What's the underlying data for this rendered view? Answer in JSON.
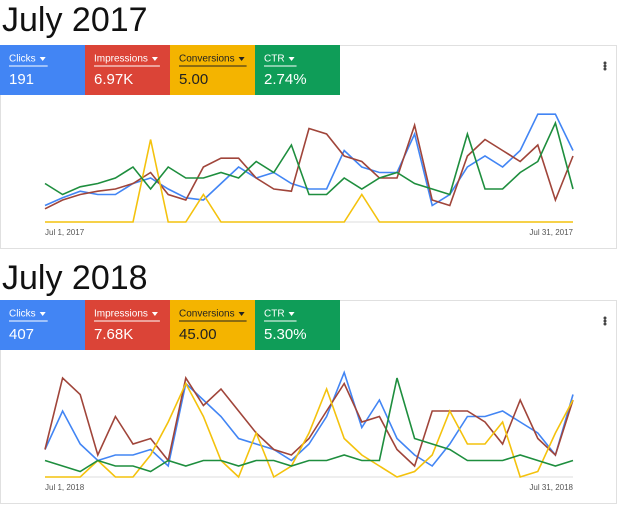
{
  "panels": [
    {
      "title": "July 2017",
      "tiles": [
        {
          "label": "Clicks",
          "value": "191"
        },
        {
          "label": "Impressions",
          "value": "6.97K"
        },
        {
          "label": "Conversions",
          "value": "5.00"
        },
        {
          "label": "CTR",
          "value": "2.74%"
        }
      ],
      "chart_data": {
        "type": "line",
        "ylim": [
          0,
          100
        ],
        "categories": [
          "Jul 1, 2017",
          null,
          null,
          null,
          null,
          null,
          null,
          null,
          null,
          null,
          null,
          null,
          null,
          null,
          null,
          null,
          null,
          null,
          null,
          null,
          null,
          null,
          null,
          null,
          null,
          null,
          null,
          null,
          null,
          null,
          "Jul 31, 2017"
        ],
        "series": [
          {
            "name": "Clicks",
            "color": "#4285f4",
            "values": [
              15,
              22,
              28,
              25,
              25,
              35,
              40,
              30,
              22,
              20,
              35,
              50,
              40,
              45,
              35,
              30,
              30,
              65,
              50,
              45,
              45,
              80,
              15,
              25,
              50,
              60,
              50,
              65,
              98,
              98,
              65
            ]
          },
          {
            "name": "Impressions",
            "color": "#a0453a",
            "values": [
              12,
              20,
              25,
              28,
              30,
              35,
              45,
              25,
              20,
              50,
              58,
              58,
              40,
              30,
              28,
              85,
              80,
              60,
              55,
              40,
              40,
              88,
              20,
              15,
              60,
              75,
              65,
              55,
              70,
              20,
              60
            ]
          },
          {
            "name": "Conversions",
            "color": "#f4c20d",
            "values": [
              0,
              0,
              0,
              0,
              0,
              0,
              75,
              0,
              0,
              25,
              0,
              0,
              0,
              0,
              0,
              0,
              0,
              0,
              25,
              0,
              0,
              0,
              0,
              0,
              0,
              0,
              0,
              0,
              0,
              0,
              0
            ]
          },
          {
            "name": "CTR",
            "color": "#1e8e3e",
            "values": [
              35,
              25,
              32,
              35,
              40,
              50,
              30,
              50,
              40,
              40,
              45,
              40,
              55,
              45,
              70,
              25,
              25,
              40,
              30,
              40,
              45,
              35,
              30,
              25,
              80,
              30,
              30,
              45,
              55,
              90,
              30
            ]
          }
        ]
      }
    },
    {
      "title": "July 2018",
      "tiles": [
        {
          "label": "Clicks",
          "value": "407"
        },
        {
          "label": "Impressions",
          "value": "7.68K"
        },
        {
          "label": "Conversions",
          "value": "45.00"
        },
        {
          "label": "CTR",
          "value": "5.30%"
        }
      ],
      "chart_data": {
        "type": "line",
        "ylim": [
          0,
          100
        ],
        "categories": [
          "Jul 1, 2018",
          null,
          null,
          null,
          null,
          null,
          null,
          null,
          null,
          null,
          null,
          null,
          null,
          null,
          null,
          null,
          null,
          null,
          null,
          null,
          null,
          null,
          null,
          null,
          null,
          null,
          null,
          null,
          null,
          null,
          "Jul 31, 2018"
        ],
        "series": [
          {
            "name": "Clicks",
            "color": "#4285f4",
            "values": [
              25,
              60,
              30,
              15,
              20,
              20,
              25,
              10,
              85,
              70,
              55,
              35,
              30,
              25,
              15,
              30,
              55,
              95,
              45,
              70,
              35,
              20,
              10,
              30,
              55,
              55,
              60,
              50,
              40,
              20,
              75
            ]
          },
          {
            "name": "Impressions",
            "color": "#a0453a",
            "values": [
              25,
              90,
              75,
              20,
              55,
              30,
              35,
              15,
              90,
              65,
              80,
              60,
              40,
              25,
              20,
              35,
              60,
              85,
              50,
              55,
              25,
              10,
              60,
              60,
              60,
              50,
              30,
              70,
              35,
              20,
              70
            ]
          },
          {
            "name": "Conversions",
            "color": "#f4c20d",
            "values": [
              0,
              0,
              0,
              15,
              0,
              0,
              20,
              50,
              85,
              55,
              15,
              0,
              40,
              0,
              10,
              40,
              80,
              35,
              20,
              10,
              0,
              5,
              20,
              60,
              30,
              30,
              50,
              0,
              5,
              40,
              70
            ]
          },
          {
            "name": "CTR",
            "color": "#1e8e3e",
            "values": [
              15,
              10,
              5,
              15,
              10,
              10,
              5,
              15,
              10,
              15,
              15,
              10,
              15,
              15,
              10,
              15,
              15,
              20,
              15,
              15,
              90,
              35,
              30,
              25,
              15,
              15,
              15,
              20,
              15,
              10,
              15
            ]
          }
        ]
      }
    }
  ]
}
